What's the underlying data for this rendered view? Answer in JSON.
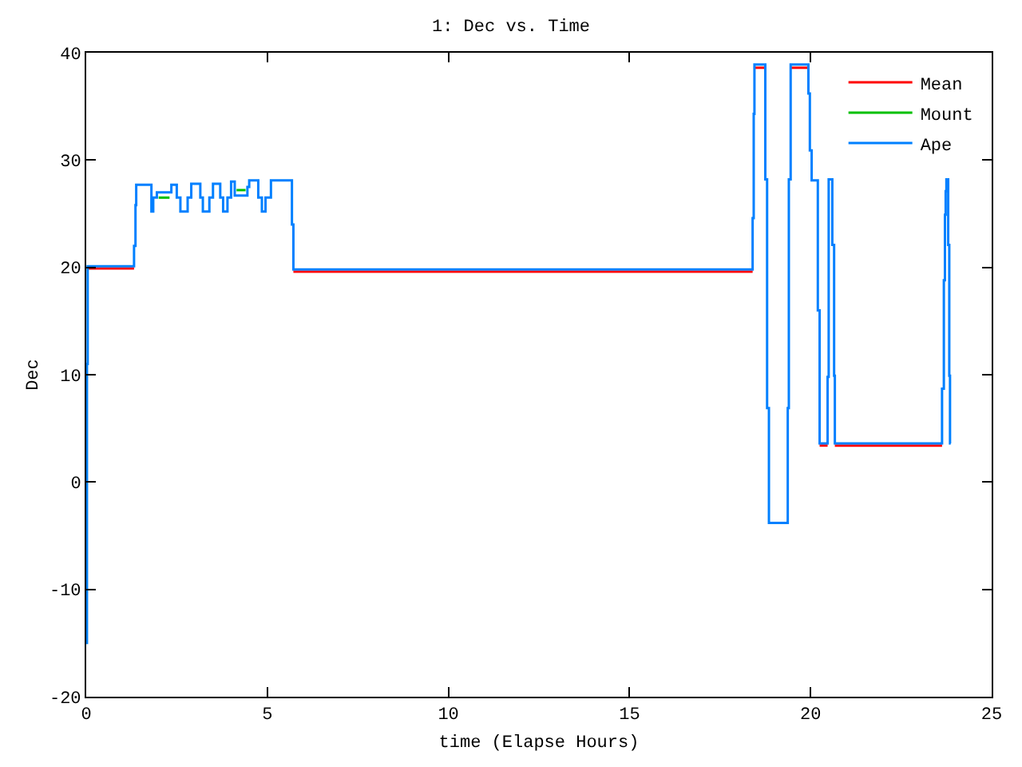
{
  "chart_data": {
    "type": "step",
    "title": "1: Dec vs. Time",
    "xlabel": "time (Elapse Hours)",
    "ylabel": "Dec",
    "x": [
      0,
      0.02,
      0.04,
      1.32,
      1.36,
      1.38,
      1.8,
      1.85,
      1.95,
      2.35,
      2.5,
      2.6,
      2.8,
      2.9,
      3.15,
      3.22,
      3.4,
      3.5,
      3.7,
      3.78,
      3.9,
      4.0,
      4.1,
      4.45,
      4.5,
      4.75,
      4.85,
      4.95,
      5.1,
      5.68,
      5.72,
      18.4,
      18.43,
      18.45,
      18.75,
      18.8,
      18.85,
      19.37,
      19.4,
      19.45,
      19.94,
      19.98,
      20.03,
      20.2,
      20.25,
      20.47,
      20.5,
      20.6,
      20.65,
      20.67,
      23.63,
      23.68,
      23.71,
      23.73,
      23.75,
      23.8,
      23.83,
      23.85,
      23.87
    ],
    "series": [
      {
        "name": "Mean",
        "color": "#ff0000",
        "x": [
          0.04,
          1.32,
          1.33,
          5.72,
          18.4,
          18.41,
          18.45,
          18.75,
          18.76,
          19.45,
          19.94,
          19.95,
          20.25,
          20.47,
          20.48,
          20.67,
          23.63
        ],
        "values": [
          19.9,
          19.9,
          null,
          19.6,
          19.6,
          null,
          38.6,
          38.6,
          null,
          38.6,
          38.6,
          null,
          3.4,
          3.4,
          null,
          3.4,
          3.4
        ]
      },
      {
        "name": "Mount",
        "color": "#00c000",
        "x": [
          2.0,
          2.3,
          2.31,
          4.15,
          4.4
        ],
        "values": [
          26.5,
          26.5,
          null,
          27.2,
          27.2
        ]
      },
      {
        "name": "Ape",
        "color": "#0080ff",
        "values": [
          -15,
          11,
          20.1,
          22,
          25.8,
          27.7,
          25.2,
          26.5,
          27.0,
          27.7,
          26.5,
          25.2,
          26.5,
          27.8,
          26.5,
          25.2,
          26.5,
          27.8,
          26.5,
          25.2,
          26.5,
          28.0,
          26.7,
          27.5,
          28.1,
          26.5,
          25.2,
          26.5,
          28.1,
          24,
          19.8,
          24.6,
          34.3,
          38.9,
          28.2,
          6.9,
          -3.8,
          6.9,
          28.2,
          38.9,
          36.2,
          30.9,
          28.1,
          16,
          3.6,
          9.8,
          28.2,
          22.1,
          9.9,
          3.6,
          8.7,
          18.8,
          24.9,
          27.1,
          28.2,
          22.1,
          9.9,
          3.6,
          3.6
        ]
      }
    ],
    "xlim": [
      0,
      25
    ],
    "xticks": [
      0,
      5,
      10,
      15,
      20,
      25
    ],
    "ylim": [
      -20,
      40
    ],
    "yticks": [
      -20,
      -10,
      0,
      10,
      20,
      30,
      40
    ],
    "grid": false,
    "legend": "top right",
    "marker": "none",
    "line_style": "solid"
  }
}
